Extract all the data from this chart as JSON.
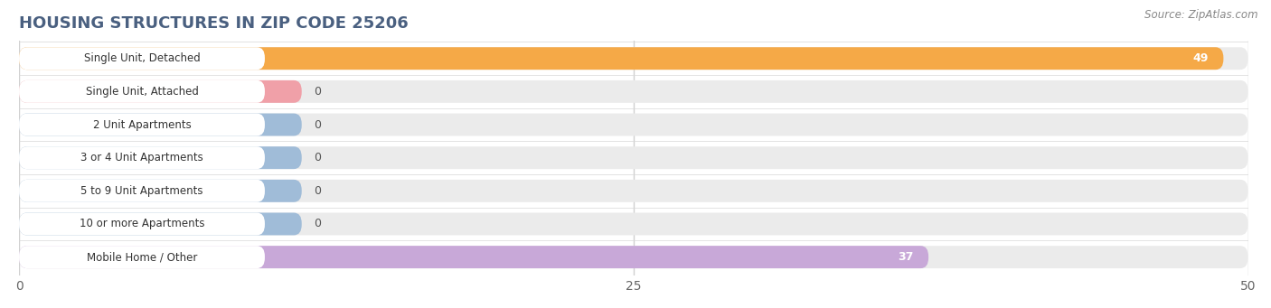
{
  "title": "HOUSING STRUCTURES IN ZIP CODE 25206",
  "source": "Source: ZipAtlas.com",
  "categories": [
    "Single Unit, Detached",
    "Single Unit, Attached",
    "2 Unit Apartments",
    "3 or 4 Unit Apartments",
    "5 to 9 Unit Apartments",
    "10 or more Apartments",
    "Mobile Home / Other"
  ],
  "values": [
    49,
    0,
    0,
    0,
    0,
    0,
    37
  ],
  "bar_colors": [
    "#f5a947",
    "#f0a0a8",
    "#a0bcd8",
    "#a0bcd8",
    "#a0bcd8",
    "#a0bcd8",
    "#c8a8d8"
  ],
  "xlim": [
    0,
    50
  ],
  "xticks": [
    0,
    25,
    50
  ],
  "background_color": "#ffffff",
  "bar_background_color": "#ebebeb",
  "grid_color": "#d0d0d0",
  "label_pill_color": "#ffffff",
  "title_color": "#4a6080",
  "source_color": "#888888"
}
